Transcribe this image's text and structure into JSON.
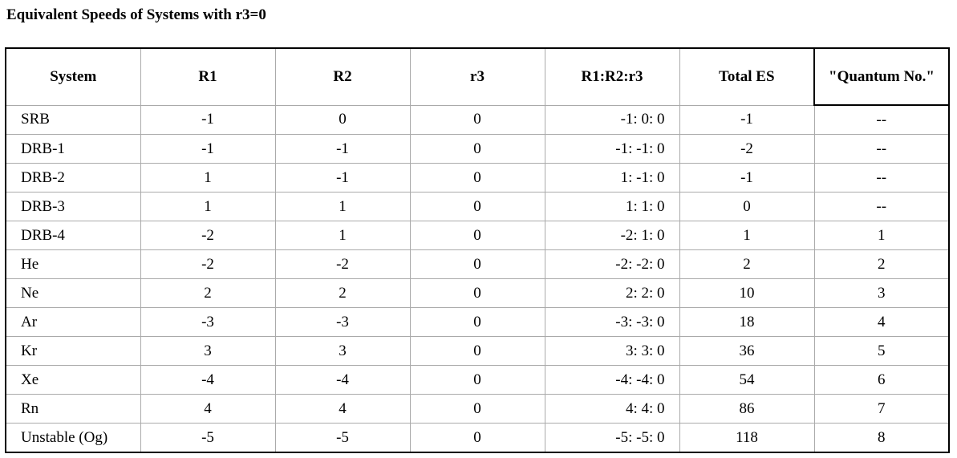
{
  "title": "Equivalent Speeds of Systems with r3=0",
  "table": {
    "header": [
      "System",
      "R1",
      "R2",
      "r3",
      "R1:R2:r3",
      "Total ES",
      "\"Quantum No.\""
    ],
    "rows": [
      [
        "SRB",
        -1,
        0,
        0,
        "-1: 0: 0",
        -1,
        "--"
      ],
      [
        "DRB-1",
        -1,
        -1,
        0,
        "-1: -1: 0",
        -2,
        "--"
      ],
      [
        "DRB-2",
        1,
        -1,
        0,
        "1: -1: 0",
        -1,
        "--"
      ],
      [
        "DRB-3",
        1,
        1,
        0,
        "1: 1: 0",
        0,
        "--"
      ],
      [
        "DRB-4",
        -2,
        1,
        0,
        "-2: 1: 0",
        1,
        1
      ],
      [
        "He",
        -2,
        -2,
        0,
        "-2: -2: 0",
        2,
        2
      ],
      [
        "Ne",
        2,
        2,
        0,
        "2: 2: 0",
        10,
        3
      ],
      [
        "Ar",
        -3,
        -3,
        0,
        "-3: -3: 0",
        18,
        4
      ],
      [
        "Kr",
        3,
        3,
        0,
        "3: 3: 0",
        36,
        5
      ],
      [
        "Xe",
        -4,
        -4,
        0,
        "-4: -4: 0",
        54,
        6
      ],
      [
        "Rn",
        4,
        4,
        0,
        "4: 4: 0",
        86,
        7
      ],
      [
        "Unstable (Og)",
        -5,
        -5,
        0,
        "-5: -5: 0",
        118,
        8
      ]
    ]
  }
}
